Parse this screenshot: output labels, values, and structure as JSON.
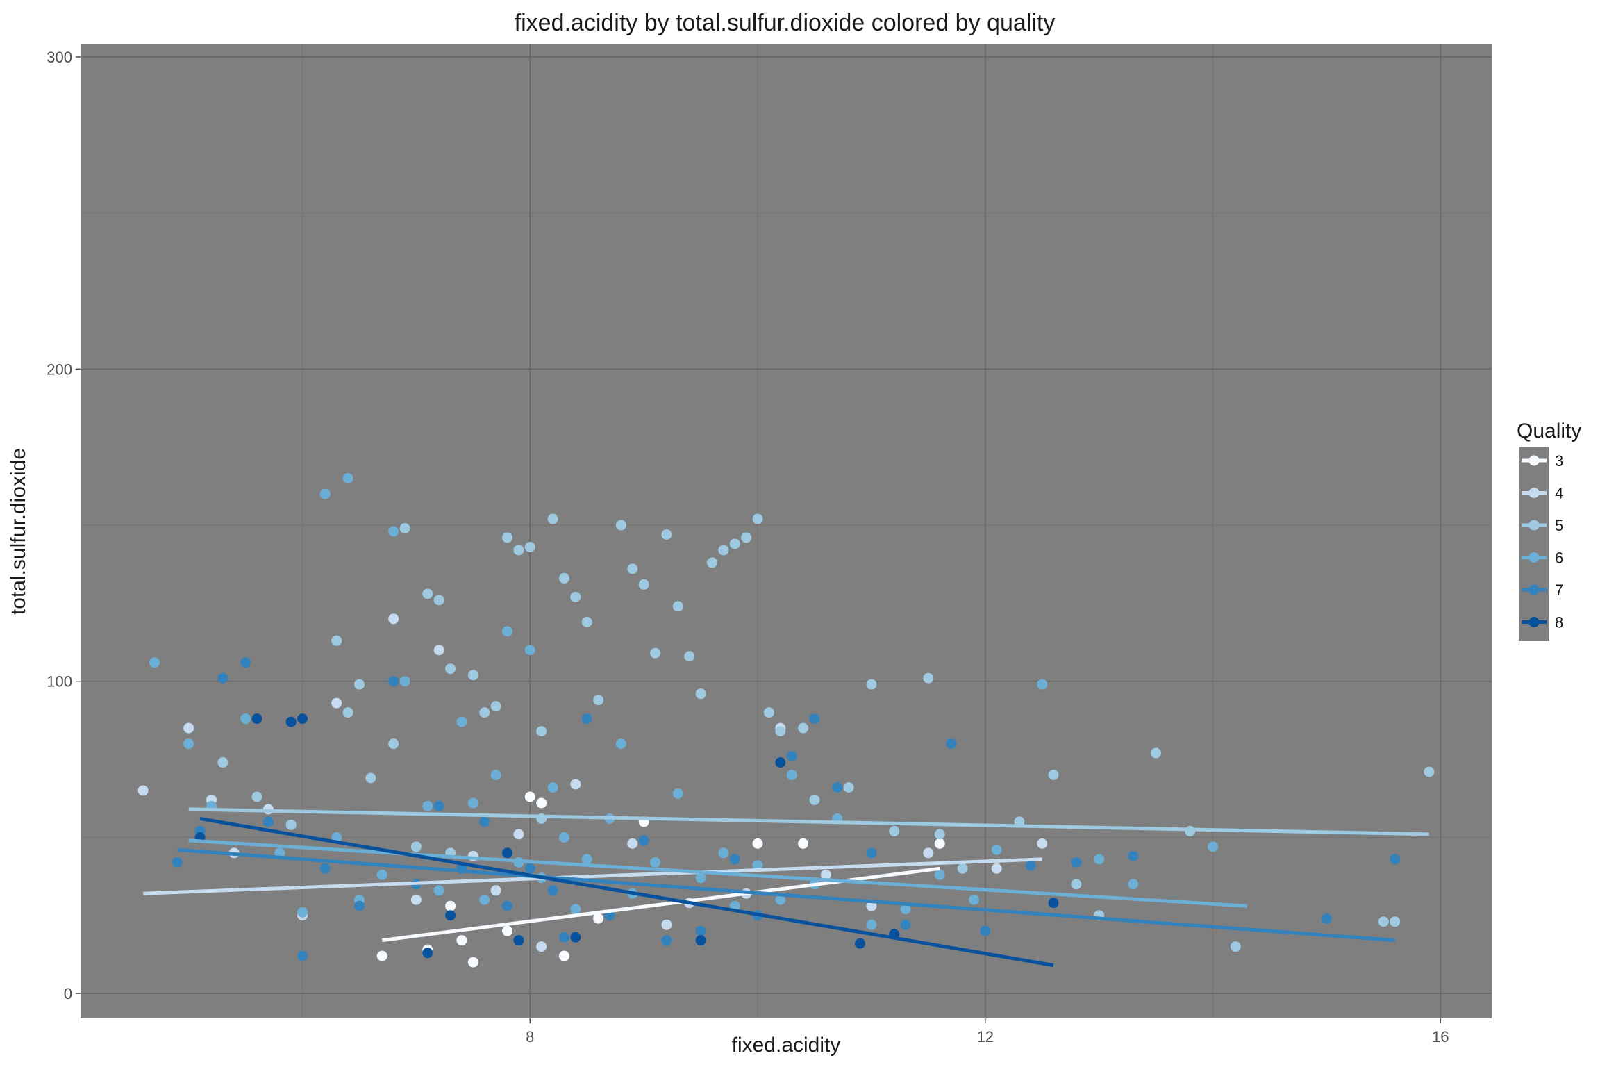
{
  "chart_data": {
    "type": "scatter",
    "title": "fixed.acidity by total.sulfur.dioxide colored by quality",
    "xlabel": "fixed.acidity",
    "ylabel": "total.sulfur.dioxide",
    "xlim": [
      4.05,
      16.45
    ],
    "ylim": [
      -8,
      304
    ],
    "x_ticks": [
      8,
      12,
      16
    ],
    "y_ticks": [
      0,
      100,
      200,
      300
    ],
    "grid": true,
    "panel_background": "#7f7f7f",
    "legend": {
      "title": "Quality",
      "position": "right",
      "entries": [
        "3",
        "4",
        "5",
        "6",
        "7",
        "8"
      ]
    },
    "series": [
      {
        "name": "3",
        "color": "#f7fbff",
        "trend": {
          "x": [
            6.7,
            11.6
          ],
          "y": [
            17,
            40
          ]
        },
        "points": [
          [
            6.7,
            12
          ],
          [
            7.1,
            14
          ],
          [
            7.3,
            28
          ],
          [
            7.4,
            17
          ],
          [
            7.5,
            10
          ],
          [
            7.8,
            20
          ],
          [
            8.0,
            63
          ],
          [
            8.1,
            61
          ],
          [
            8.3,
            12
          ],
          [
            8.6,
            24
          ],
          [
            9.0,
            55
          ],
          [
            10.0,
            48
          ],
          [
            10.4,
            48
          ],
          [
            11.6,
            48
          ]
        ]
      },
      {
        "name": "4",
        "color": "#c6dbef",
        "trend": {
          "x": [
            4.6,
            12.5
          ],
          "y": [
            32,
            43
          ]
        },
        "points": [
          [
            4.6,
            65
          ],
          [
            5.0,
            85
          ],
          [
            5.2,
            62
          ],
          [
            5.4,
            45
          ],
          [
            5.7,
            59
          ],
          [
            6.0,
            25
          ],
          [
            6.3,
            93
          ],
          [
            6.8,
            120
          ],
          [
            7.0,
            30
          ],
          [
            7.2,
            110
          ],
          [
            7.5,
            44
          ],
          [
            7.7,
            33
          ],
          [
            7.9,
            51
          ],
          [
            8.1,
            15
          ],
          [
            8.4,
            67
          ],
          [
            8.9,
            48
          ],
          [
            9.2,
            22
          ],
          [
            9.4,
            29
          ],
          [
            9.9,
            32
          ],
          [
            10.2,
            85
          ],
          [
            10.6,
            38
          ],
          [
            11.0,
            28
          ],
          [
            11.5,
            45
          ],
          [
            12.1,
            40
          ],
          [
            12.5,
            48
          ]
        ]
      },
      {
        "name": "5",
        "color": "#9ecae1",
        "trend": {
          "x": [
            5.0,
            15.9
          ],
          "y": [
            59,
            51
          ]
        },
        "points": [
          [
            5.3,
            74
          ],
          [
            5.6,
            63
          ],
          [
            5.9,
            54
          ],
          [
            6.3,
            113
          ],
          [
            6.4,
            90
          ],
          [
            6.5,
            99
          ],
          [
            6.6,
            69
          ],
          [
            6.8,
            80
          ],
          [
            6.9,
            149
          ],
          [
            7.0,
            47
          ],
          [
            7.1,
            128
          ],
          [
            7.2,
            126
          ],
          [
            7.3,
            104
          ],
          [
            7.3,
            45
          ],
          [
            7.5,
            102
          ],
          [
            7.6,
            90
          ],
          [
            7.7,
            92
          ],
          [
            7.8,
            146
          ],
          [
            7.9,
            142
          ],
          [
            8.0,
            143
          ],
          [
            8.1,
            84
          ],
          [
            8.1,
            56
          ],
          [
            8.2,
            152
          ],
          [
            8.3,
            133
          ],
          [
            8.4,
            127
          ],
          [
            8.5,
            119
          ],
          [
            8.6,
            94
          ],
          [
            8.8,
            150
          ],
          [
            8.9,
            136
          ],
          [
            9.0,
            131
          ],
          [
            9.1,
            109
          ],
          [
            9.2,
            147
          ],
          [
            9.3,
            124
          ],
          [
            9.4,
            108
          ],
          [
            9.5,
            96
          ],
          [
            9.6,
            138
          ],
          [
            9.7,
            142
          ],
          [
            9.8,
            144
          ],
          [
            9.9,
            146
          ],
          [
            10.0,
            152
          ],
          [
            10.1,
            90
          ],
          [
            10.2,
            84
          ],
          [
            10.4,
            85
          ],
          [
            10.5,
            62
          ],
          [
            10.8,
            66
          ],
          [
            11.0,
            99
          ],
          [
            11.2,
            52
          ],
          [
            11.5,
            101
          ],
          [
            11.6,
            51
          ],
          [
            11.8,
            40
          ],
          [
            12.3,
            55
          ],
          [
            12.6,
            70
          ],
          [
            12.8,
            35
          ],
          [
            13.0,
            25
          ],
          [
            13.5,
            77
          ],
          [
            13.8,
            52
          ],
          [
            14.2,
            15
          ],
          [
            15.5,
            23
          ],
          [
            15.6,
            23
          ],
          [
            15.9,
            71
          ]
        ]
      },
      {
        "name": "6",
        "color": "#6baed6",
        "trend": {
          "x": [
            5.0,
            14.3
          ],
          "y": [
            49,
            28
          ]
        },
        "points": [
          [
            4.7,
            106
          ],
          [
            5.0,
            80
          ],
          [
            5.2,
            60
          ],
          [
            5.5,
            88
          ],
          [
            5.8,
            45
          ],
          [
            6.0,
            26
          ],
          [
            6.2,
            160
          ],
          [
            6.3,
            50
          ],
          [
            6.4,
            165
          ],
          [
            6.5,
            30
          ],
          [
            6.7,
            38
          ],
          [
            6.8,
            148
          ],
          [
            6.9,
            100
          ],
          [
            7.1,
            60
          ],
          [
            7.2,
            33
          ],
          [
            7.4,
            87
          ],
          [
            7.5,
            61
          ],
          [
            7.6,
            30
          ],
          [
            7.7,
            70
          ],
          [
            7.8,
            116
          ],
          [
            7.9,
            42
          ],
          [
            8.0,
            110
          ],
          [
            8.1,
            37
          ],
          [
            8.2,
            66
          ],
          [
            8.3,
            50
          ],
          [
            8.4,
            27
          ],
          [
            8.5,
            43
          ],
          [
            8.7,
            56
          ],
          [
            8.8,
            80
          ],
          [
            8.9,
            32
          ],
          [
            9.1,
            42
          ],
          [
            9.3,
            64
          ],
          [
            9.5,
            37
          ],
          [
            9.7,
            45
          ],
          [
            9.8,
            28
          ],
          [
            10.0,
            41
          ],
          [
            10.2,
            30
          ],
          [
            10.3,
            70
          ],
          [
            10.5,
            35
          ],
          [
            10.7,
            56
          ],
          [
            11.0,
            22
          ],
          [
            11.3,
            27
          ],
          [
            11.6,
            38
          ],
          [
            11.9,
            30
          ],
          [
            12.1,
            46
          ],
          [
            12.5,
            99
          ],
          [
            13.0,
            43
          ],
          [
            13.3,
            35
          ],
          [
            14.0,
            47
          ]
        ]
      },
      {
        "name": "7",
        "color": "#3182bd",
        "trend": {
          "x": [
            4.9,
            15.6
          ],
          "y": [
            46,
            17
          ]
        },
        "points": [
          [
            4.9,
            42
          ],
          [
            5.1,
            52
          ],
          [
            5.3,
            101
          ],
          [
            5.5,
            106
          ],
          [
            5.7,
            55
          ],
          [
            6.0,
            12
          ],
          [
            6.2,
            40
          ],
          [
            6.5,
            28
          ],
          [
            6.8,
            100
          ],
          [
            7.0,
            35
          ],
          [
            7.2,
            60
          ],
          [
            7.4,
            40
          ],
          [
            7.6,
            55
          ],
          [
            7.8,
            28
          ],
          [
            8.0,
            40
          ],
          [
            8.2,
            33
          ],
          [
            8.3,
            18
          ],
          [
            8.5,
            88
          ],
          [
            8.7,
            25
          ],
          [
            9.0,
            49
          ],
          [
            9.2,
            17
          ],
          [
            9.5,
            20
          ],
          [
            9.8,
            43
          ],
          [
            10.0,
            25
          ],
          [
            10.3,
            76
          ],
          [
            10.5,
            88
          ],
          [
            10.7,
            66
          ],
          [
            11.0,
            45
          ],
          [
            11.3,
            22
          ],
          [
            11.7,
            80
          ],
          [
            12.0,
            20
          ],
          [
            12.4,
            41
          ],
          [
            12.8,
            42
          ],
          [
            13.3,
            44
          ],
          [
            15.0,
            24
          ],
          [
            15.6,
            43
          ]
        ]
      },
      {
        "name": "8",
        "color": "#08519c",
        "trend": {
          "x": [
            5.1,
            12.6
          ],
          "y": [
            56,
            9
          ]
        },
        "points": [
          [
            5.1,
            50
          ],
          [
            5.6,
            88
          ],
          [
            5.9,
            87
          ],
          [
            6.0,
            88
          ],
          [
            7.1,
            13
          ],
          [
            7.3,
            25
          ],
          [
            7.8,
            45
          ],
          [
            7.9,
            17
          ],
          [
            8.4,
            18
          ],
          [
            9.5,
            17
          ],
          [
            10.2,
            74
          ],
          [
            10.9,
            16
          ],
          [
            11.2,
            19
          ],
          [
            12.6,
            29
          ]
        ]
      }
    ]
  }
}
